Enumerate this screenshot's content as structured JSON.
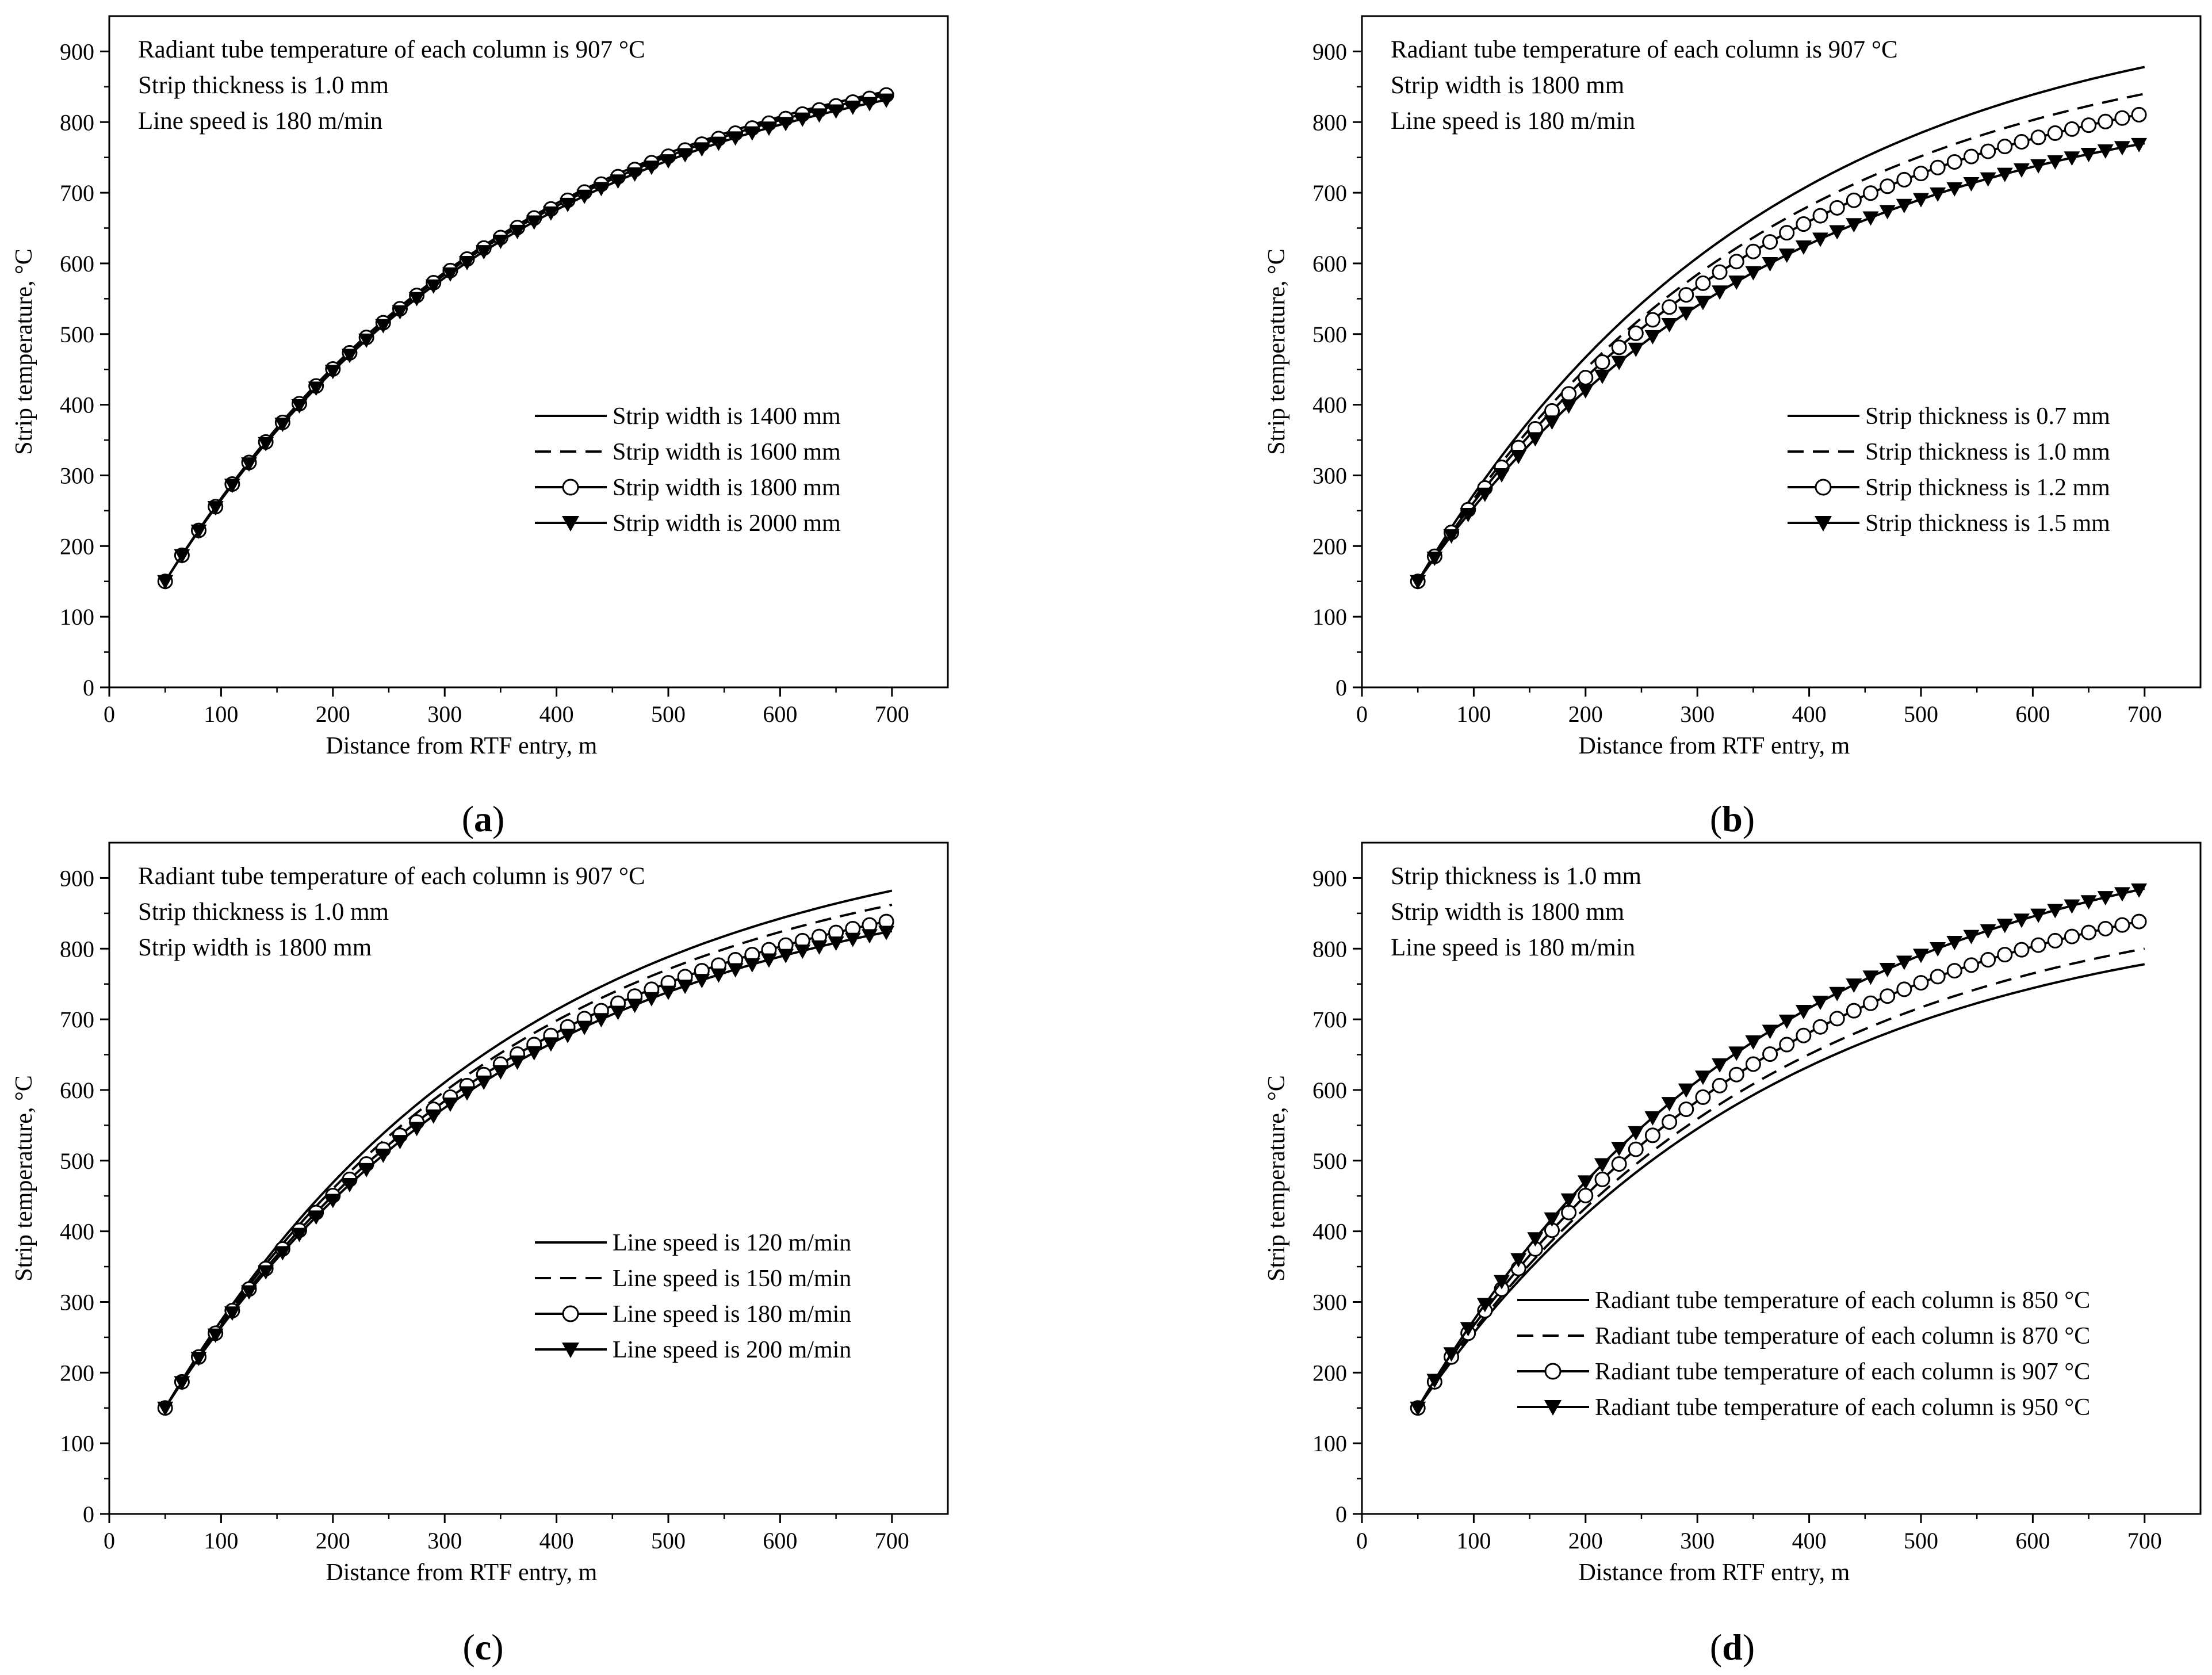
{
  "figure": {
    "background": "#ffffff",
    "line_color": "#000000"
  },
  "chart_data": [
    {
      "id": "a",
      "type": "line",
      "panel_label": "a",
      "xlabel": "Distance from RTF entry, m",
      "ylabel": "Strip temperature, °C",
      "xlim": [
        0,
        750
      ],
      "ylim": [
        0,
        950
      ],
      "xticks": [
        0,
        100,
        200,
        300,
        400,
        500,
        600,
        700
      ],
      "yticks": [
        0,
        100,
        200,
        300,
        400,
        500,
        600,
        700,
        800,
        900
      ],
      "annotations": [
        "Radiant tube temperature of each column is 907 °C",
        "Strip thickness is 1.0 mm",
        "Line speed is 180 m/min"
      ],
      "legend_position": "center-right",
      "series": [
        {
          "name": "Strip width is 1400 mm",
          "style": "solid",
          "marker": "none",
          "x0": 50,
          "x1": 700,
          "y0": 150,
          "y1": 845
        },
        {
          "name": "Strip width is 1600 mm",
          "style": "dashed",
          "marker": "none",
          "x0": 50,
          "x1": 700,
          "y0": 150,
          "y1": 843
        },
        {
          "name": "Strip width is 1800 mm",
          "style": "solid",
          "marker": "circle",
          "x0": 50,
          "x1": 700,
          "y0": 150,
          "y1": 840
        },
        {
          "name": "Strip width is 2000 mm",
          "style": "solid",
          "marker": "triangle-down",
          "x0": 50,
          "x1": 700,
          "y0": 150,
          "y1": 833
        }
      ]
    },
    {
      "id": "b",
      "type": "line",
      "panel_label": "b",
      "xlabel": "Distance from RTF entry, m",
      "ylabel": "Strip temperature, °C",
      "xlim": [
        0,
        750
      ],
      "ylim": [
        0,
        950
      ],
      "xticks": [
        0,
        100,
        200,
        300,
        400,
        500,
        600,
        700
      ],
      "yticks": [
        0,
        100,
        200,
        300,
        400,
        500,
        600,
        700,
        800,
        900
      ],
      "annotations": [
        "Radiant tube temperature of each column is 907 °C",
        "Strip width is 1800 mm",
        "Line speed is 180 m/min"
      ],
      "legend_position": "center-right",
      "series": [
        {
          "name": "Strip thickness is 0.7 mm",
          "style": "solid",
          "marker": "none",
          "x0": 50,
          "x1": 700,
          "y0": 150,
          "y1": 878
        },
        {
          "name": "Strip thickness is 1.0 mm",
          "style": "dashed",
          "marker": "none",
          "x0": 50,
          "x1": 700,
          "y0": 150,
          "y1": 840
        },
        {
          "name": "Strip thickness is 1.2 mm",
          "style": "solid",
          "marker": "circle",
          "x0": 50,
          "x1": 700,
          "y0": 150,
          "y1": 812
        },
        {
          "name": "Strip thickness is 1.5 mm",
          "style": "solid",
          "marker": "triangle-down",
          "x0": 50,
          "x1": 700,
          "y0": 150,
          "y1": 770
        }
      ]
    },
    {
      "id": "c",
      "type": "line",
      "panel_label": "c",
      "xlabel": "Distance from RTF entry, m",
      "ylabel": "Strip temperature, °C",
      "xlim": [
        0,
        750
      ],
      "ylim": [
        0,
        950
      ],
      "xticks": [
        0,
        100,
        200,
        300,
        400,
        500,
        600,
        700
      ],
      "yticks": [
        0,
        100,
        200,
        300,
        400,
        500,
        600,
        700,
        800,
        900
      ],
      "annotations": [
        "Radiant tube temperature of each column is 907 °C",
        "Strip thickness is 1.0 mm",
        "Strip width is 1800 mm"
      ],
      "legend_position": "center-right",
      "series": [
        {
          "name": "Line speed is 120 m/min",
          "style": "solid",
          "marker": "none",
          "x0": 50,
          "x1": 700,
          "y0": 150,
          "y1": 882
        },
        {
          "name": "Line speed is 150 m/min",
          "style": "dashed",
          "marker": "none",
          "x0": 50,
          "x1": 700,
          "y0": 150,
          "y1": 862
        },
        {
          "name": "Line speed is 180 m/min",
          "style": "solid",
          "marker": "circle",
          "x0": 50,
          "x1": 700,
          "y0": 150,
          "y1": 840
        },
        {
          "name": "Line speed is 200 m/min",
          "style": "solid",
          "marker": "triangle-down",
          "x0": 50,
          "x1": 700,
          "y0": 150,
          "y1": 825
        }
      ]
    },
    {
      "id": "d",
      "type": "line",
      "panel_label": "d",
      "xlabel": "Distance from RTF entry, m",
      "ylabel": "Strip temperature, °C",
      "xlim": [
        0,
        750
      ],
      "ylim": [
        0,
        950
      ],
      "xticks": [
        0,
        100,
        200,
        300,
        400,
        500,
        600,
        700
      ],
      "yticks": [
        0,
        100,
        200,
        300,
        400,
        500,
        600,
        700,
        800,
        900
      ],
      "annotations": [
        "Strip thickness is 1.0 mm",
        "Strip width is 1800 mm",
        "Line speed is 180 m/min"
      ],
      "legend_position": "bottom-right",
      "series": [
        {
          "name": "Radiant tube temperature of each column is 850 °C",
          "style": "solid",
          "marker": "none",
          "x0": 50,
          "x1": 700,
          "y0": 150,
          "y1": 778
        },
        {
          "name": "Radiant tube temperature of each column is 870 °C",
          "style": "dashed",
          "marker": "none",
          "x0": 50,
          "x1": 700,
          "y0": 150,
          "y1": 800
        },
        {
          "name": "Radiant tube temperature of each column is 907 °C",
          "style": "solid",
          "marker": "circle",
          "x0": 50,
          "x1": 700,
          "y0": 150,
          "y1": 840
        },
        {
          "name": "Radiant tube temperature of each column is 950 °C",
          "style": "solid",
          "marker": "triangle-down",
          "x0": 50,
          "x1": 700,
          "y0": 150,
          "y1": 885
        }
      ]
    }
  ]
}
